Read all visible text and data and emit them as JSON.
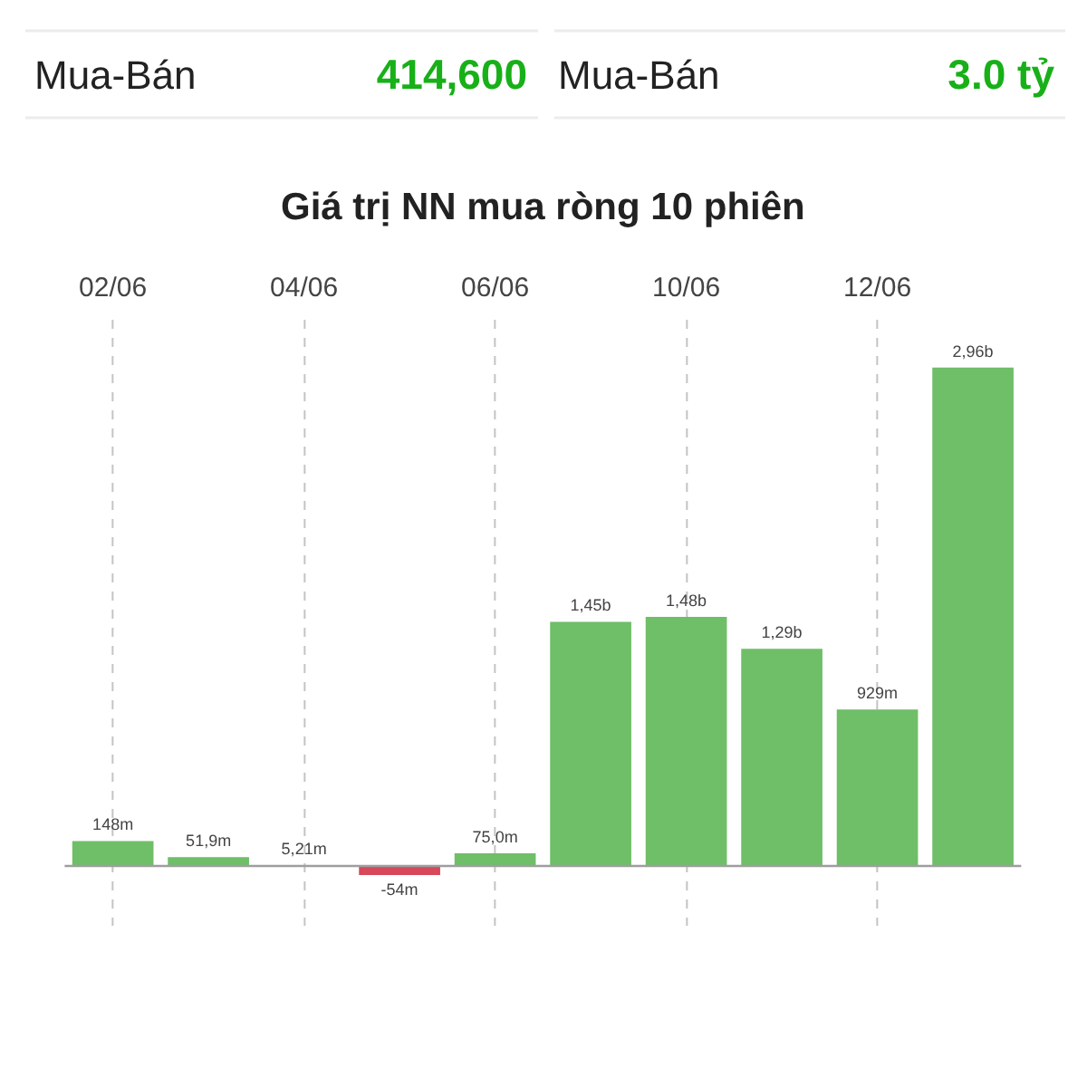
{
  "chart_data": [
    {
      "type": "other",
      "annotations": [
        "Mua-Bán",
        "414,600",
        "Mua-Bán",
        "3.0 tỷ"
      ],
      "colors": [
        "#222222",
        "#18b018",
        "#222222",
        "#18b018"
      ]
    },
    {
      "type": "bar",
      "title": "Giá trị NN mua ròng 10 phiên",
      "categories": [
        "02/06",
        null,
        "04/06",
        null,
        "06/06",
        null,
        "10/06",
        null,
        "12/06",
        null
      ],
      "values": [
        148000000,
        51900000,
        5210000,
        -54000000,
        75000000,
        1450000000,
        1480000000,
        1290000000,
        929000000,
        2960000000
      ],
      "value_labels": [
        "148m",
        "51,9m",
        "5,21m",
        "-54m",
        "75,0m",
        "1,45b",
        "1,48b",
        "1,29b",
        "929m",
        "2,96b"
      ],
      "colors": [
        "#6fbe68",
        "#6fbe68",
        "#6fbe68",
        "#d6485a",
        "#6fbe68",
        "#6fbe68",
        "#6fbe68",
        "#6fbe68",
        "#6fbe68",
        "#6fbe68"
      ],
      "grid": "x",
      "tick_labels": "x"
    }
  ]
}
